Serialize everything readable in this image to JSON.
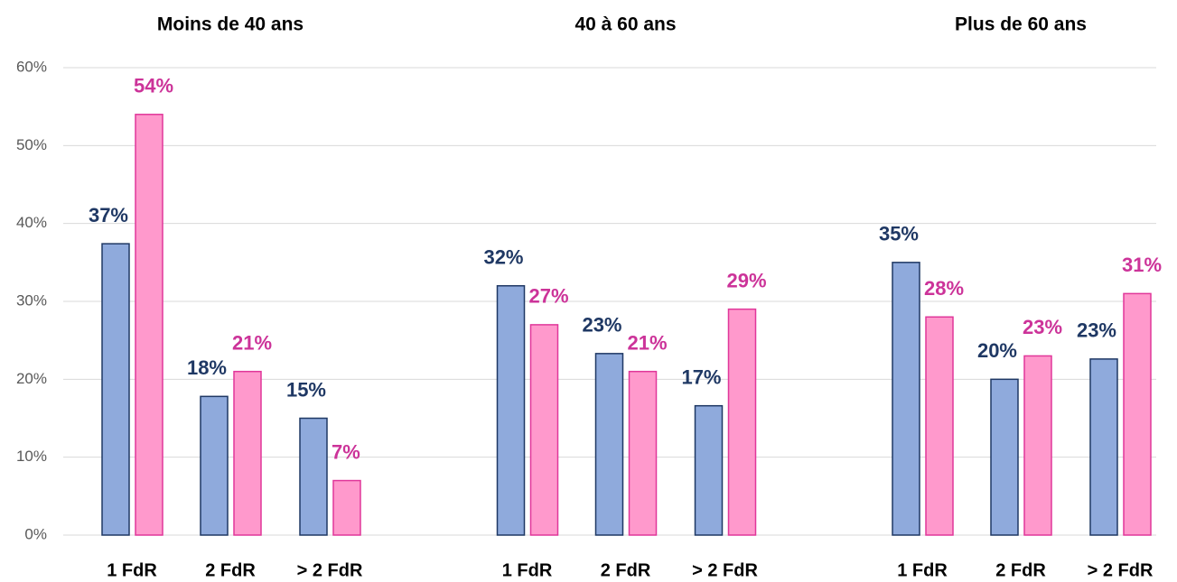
{
  "chart_data": [
    {
      "type": "bar",
      "title": "Moins de 40 ans",
      "categories": [
        "1 FdR",
        "2 FdR",
        "> 2 FdR"
      ],
      "series": [
        {
          "color": "#8faadc",
          "edge": "#1f3864",
          "label_color": "#1f3864",
          "values": [
            37.4,
            17.8,
            15
          ],
          "value_labels": [
            "37%",
            "18%",
            "15%"
          ]
        },
        {
          "color": "#ff99cc",
          "edge": "#e0379a",
          "label_color": "#cc3399",
          "values": [
            54,
            21,
            7
          ],
          "value_labels": [
            "54%",
            "21%",
            "7%"
          ]
        }
      ],
      "ylim": [
        0,
        60
      ],
      "yticks": [
        {
          "value": 0,
          "label": "0%"
        },
        {
          "value": 10,
          "label": "10%"
        },
        {
          "value": 20,
          "label": "20%"
        },
        {
          "value": 30,
          "label": "30%"
        },
        {
          "value": 40,
          "label": "40%"
        },
        {
          "value": 50,
          "label": "50%"
        },
        {
          "value": 60,
          "label": "60%"
        }
      ],
      "grid": true
    },
    {
      "type": "bar",
      "title": "40 à 60 ans",
      "categories": [
        "1 FdR",
        "2 FdR",
        "> 2 FdR"
      ],
      "series": [
        {
          "color": "#8faadc",
          "edge": "#1f3864",
          "label_color": "#1f3864",
          "values": [
            32,
            23.3,
            16.6
          ],
          "value_labels": [
            "32%",
            "23%",
            "17%"
          ]
        },
        {
          "color": "#ff99cc",
          "edge": "#e0379a",
          "label_color": "#cc3399",
          "values": [
            27,
            21,
            29
          ],
          "value_labels": [
            "27%",
            "21%",
            "29%"
          ]
        }
      ],
      "ylim": [
        0,
        60
      ]
    },
    {
      "type": "bar",
      "title": "Plus de 60 ans",
      "categories": [
        "1 FdR",
        "2 FdR",
        "> 2 FdR"
      ],
      "series": [
        {
          "color": "#8faadc",
          "edge": "#1f3864",
          "label_color": "#1f3864",
          "values": [
            35,
            20,
            22.6
          ],
          "value_labels": [
            "35%",
            "20%",
            "23%"
          ]
        },
        {
          "color": "#ff99cc",
          "edge": "#e0379a",
          "label_color": "#cc3399",
          "values": [
            28,
            23,
            31
          ],
          "value_labels": [
            "28%",
            "23%",
            "31%"
          ]
        }
      ],
      "ylim": [
        0,
        60
      ]
    }
  ]
}
